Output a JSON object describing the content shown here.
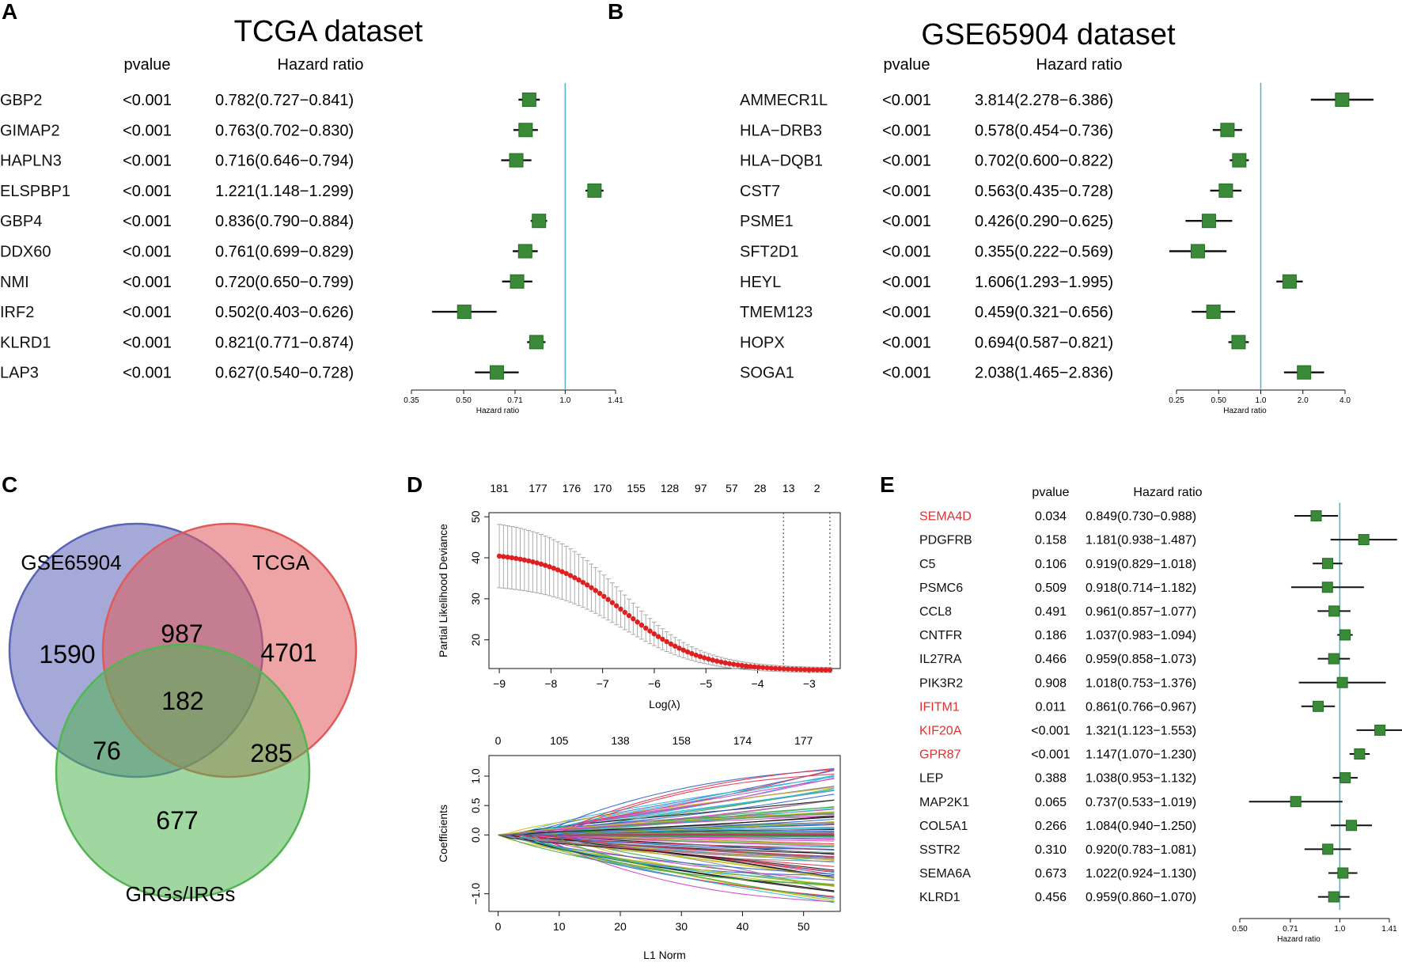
{
  "figure": {
    "panels": {
      "A": "A",
      "B": "B",
      "C": "C",
      "D": "D",
      "E": "E"
    },
    "colors": {
      "box": "#3a8a3a",
      "box_edge": "#1e6e1e",
      "refline": "#5ab4c8",
      "highlight": "#e03030",
      "lasso_dot": "#e02020"
    }
  },
  "chart_data": [
    {
      "type": "forest",
      "panel": "A",
      "title": "TCGA dataset",
      "col_pvalue": "pvalue",
      "col_hr": "Hazard ratio",
      "xlabel": "Hazard ratio",
      "ticks": [
        0.35,
        0.5,
        0.71,
        1.0,
        1.41
      ],
      "tick_labels": [
        "0.35",
        "0.50",
        "0.71",
        "1.0",
        "1.41"
      ],
      "ref": 1.0,
      "rows": [
        {
          "gene": "GBP2",
          "p": "<0.001",
          "hr_text": "0.782(0.727−0.841)",
          "hr": 0.782,
          "lo": 0.727,
          "hi": 0.841
        },
        {
          "gene": "GIMAP2",
          "p": "<0.001",
          "hr_text": "0.763(0.702−0.830)",
          "hr": 0.763,
          "lo": 0.702,
          "hi": 0.83
        },
        {
          "gene": "HAPLN3",
          "p": "<0.001",
          "hr_text": "0.716(0.646−0.794)",
          "hr": 0.716,
          "lo": 0.646,
          "hi": 0.794
        },
        {
          "gene": "ELSPBP1",
          "p": "<0.001",
          "hr_text": "1.221(1.148−1.299)",
          "hr": 1.221,
          "lo": 1.148,
          "hi": 1.299
        },
        {
          "gene": "GBP4",
          "p": "<0.001",
          "hr_text": "0.836(0.790−0.884)",
          "hr": 0.836,
          "lo": 0.79,
          "hi": 0.884
        },
        {
          "gene": "DDX60",
          "p": "<0.001",
          "hr_text": "0.761(0.699−0.829)",
          "hr": 0.761,
          "lo": 0.699,
          "hi": 0.829
        },
        {
          "gene": "NMI",
          "p": "<0.001",
          "hr_text": "0.720(0.650−0.799)",
          "hr": 0.72,
          "lo": 0.65,
          "hi": 0.799
        },
        {
          "gene": "IRF2",
          "p": "<0.001",
          "hr_text": "0.502(0.403−0.626)",
          "hr": 0.502,
          "lo": 0.403,
          "hi": 0.626
        },
        {
          "gene": "KLRD1",
          "p": "<0.001",
          "hr_text": "0.821(0.771−0.874)",
          "hr": 0.821,
          "lo": 0.771,
          "hi": 0.874
        },
        {
          "gene": "LAP3",
          "p": "<0.001",
          "hr_text": "0.627(0.540−0.728)",
          "hr": 0.627,
          "lo": 0.54,
          "hi": 0.728
        }
      ]
    },
    {
      "type": "forest",
      "panel": "B",
      "title": "GSE65904 dataset",
      "col_pvalue": "pvalue",
      "col_hr": "Hazard ratio",
      "xlabel": "Hazard ratio",
      "ticks": [
        0.25,
        0.5,
        1.0,
        2.0,
        4.0
      ],
      "tick_labels": [
        "0.25",
        "0.50",
        "1.0",
        "2.0",
        "4.0"
      ],
      "ref": 1.0,
      "rows": [
        {
          "gene": "AMMECR1L",
          "p": "<0.001",
          "hr_text": "3.814(2.278−6.386)",
          "hr": 3.814,
          "lo": 2.278,
          "hi": 6.386
        },
        {
          "gene": "HLA−DRB3",
          "p": "<0.001",
          "hr_text": "0.578(0.454−0.736)",
          "hr": 0.578,
          "lo": 0.454,
          "hi": 0.736
        },
        {
          "gene": "HLA−DQB1",
          "p": "<0.001",
          "hr_text": "0.702(0.600−0.822)",
          "hr": 0.702,
          "lo": 0.6,
          "hi": 0.822
        },
        {
          "gene": "CST7",
          "p": "<0.001",
          "hr_text": "0.563(0.435−0.728)",
          "hr": 0.563,
          "lo": 0.435,
          "hi": 0.728
        },
        {
          "gene": "PSME1",
          "p": "<0.001",
          "hr_text": "0.426(0.290−0.625)",
          "hr": 0.426,
          "lo": 0.29,
          "hi": 0.625
        },
        {
          "gene": "SFT2D1",
          "p": "<0.001",
          "hr_text": "0.355(0.222−0.569)",
          "hr": 0.355,
          "lo": 0.222,
          "hi": 0.569
        },
        {
          "gene": "HEYL",
          "p": "<0.001",
          "hr_text": "1.606(1.293−1.995)",
          "hr": 1.606,
          "lo": 1.293,
          "hi": 1.995
        },
        {
          "gene": "TMEM123",
          "p": "<0.001",
          "hr_text": "0.459(0.321−0.656)",
          "hr": 0.459,
          "lo": 0.321,
          "hi": 0.656
        },
        {
          "gene": "HOPX",
          "p": "<0.001",
          "hr_text": "0.694(0.587−0.821)",
          "hr": 0.694,
          "lo": 0.587,
          "hi": 0.821
        },
        {
          "gene": "SOGA1",
          "p": "<0.001",
          "hr_text": "2.038(1.465−2.836)",
          "hr": 2.038,
          "lo": 1.465,
          "hi": 2.836
        }
      ]
    },
    {
      "type": "venn",
      "panel": "C",
      "sets": [
        {
          "name": "GSE65904",
          "color": "#5b63b8"
        },
        {
          "name": "TCGA",
          "color": "#e05a5a"
        },
        {
          "name": "GRGs/IRGs",
          "color": "#52b552"
        }
      ],
      "regions": {
        "gse_only": 1590,
        "tcga_only": 4701,
        "grg_only": 677,
        "gse_tcga": 987,
        "gse_grg": 76,
        "tcga_grg": 285,
        "all": 182
      }
    },
    {
      "type": "line",
      "panel": "D",
      "subplot": "cv",
      "xlabel": "Log(λ)",
      "ylabel": "Partial Likelihood Deviance",
      "xlim": [
        -9.2,
        -2.4
      ],
      "ylim": [
        13,
        51
      ],
      "xticks": [
        -9,
        -8,
        -7,
        -6,
        -5,
        -4,
        -3
      ],
      "xtick_labels": [
        "−9",
        "−8",
        "−7",
        "−6",
        "−5",
        "−4",
        "−3"
      ],
      "yticks": [
        20,
        30,
        40,
        50
      ],
      "ytick_labels": [
        "20",
        "30",
        "40",
        "50"
      ],
      "top_counts": [
        "181",
        "177",
        "176",
        "170",
        "155",
        "128",
        "97",
        "57",
        "28",
        "13",
        "2"
      ],
      "top_positions": [
        -9.0,
        -8.25,
        -7.6,
        -7.0,
        -6.35,
        -5.7,
        -5.1,
        -4.5,
        -3.95,
        -3.4,
        -2.85
      ],
      "lambda_min": -3.5,
      "lambda_1se": -2.6,
      "curve": {
        "x_start": -9.0,
        "x_end": -2.6,
        "n": 80,
        "y_start": 41.5,
        "y_end": 12.5,
        "sd_start": 8.0,
        "sd_end": 0.6
      }
    },
    {
      "type": "line",
      "panel": "D",
      "subplot": "coef",
      "xlabel": "L1 Norm",
      "ylabel": "Coefficients",
      "xlim": [
        -1.5,
        56
      ],
      "ylim": [
        -1.3,
        1.35
      ],
      "xticks": [
        0,
        10,
        20,
        30,
        40,
        50
      ],
      "xtick_labels": [
        "0",
        "10",
        "20",
        "30",
        "40",
        "50"
      ],
      "yticks": [
        -1.0,
        0.0,
        0.5,
        1.0
      ],
      "ytick_labels": [
        "−1.0",
        "0.0",
        "0.5",
        "1.0"
      ],
      "top_counts": [
        "0",
        "105",
        "138",
        "158",
        "174",
        "177"
      ],
      "top_positions": [
        0,
        10,
        20,
        30,
        40,
        50
      ],
      "n_paths": 140,
      "x_end": 55
    },
    {
      "type": "forest",
      "panel": "E",
      "title": "",
      "col_pvalue": "pvalue",
      "col_hr": "Hazard ratio",
      "xlabel": "Hazard ratio",
      "ticks": [
        0.5,
        0.71,
        1.0,
        1.41
      ],
      "tick_labels": [
        "0.50",
        "0.71",
        "1.0",
        "1.41"
      ],
      "ref": 1.0,
      "rows": [
        {
          "gene": "SEMA4D",
          "p": "0.034",
          "hr_text": "0.849(0.730−0.988)",
          "hr": 0.849,
          "lo": 0.73,
          "hi": 0.988,
          "highlight": true
        },
        {
          "gene": "PDGFRB",
          "p": "0.158",
          "hr_text": "1.181(0.938−1.487)",
          "hr": 1.181,
          "lo": 0.938,
          "hi": 1.487
        },
        {
          "gene": "C5",
          "p": "0.106",
          "hr_text": "0.919(0.829−1.018)",
          "hr": 0.919,
          "lo": 0.829,
          "hi": 1.018
        },
        {
          "gene": "PSMC6",
          "p": "0.509",
          "hr_text": "0.918(0.714−1.182)",
          "hr": 0.918,
          "lo": 0.714,
          "hi": 1.182
        },
        {
          "gene": "CCL8",
          "p": "0.491",
          "hr_text": "0.961(0.857−1.077)",
          "hr": 0.961,
          "lo": 0.857,
          "hi": 1.077
        },
        {
          "gene": "CNTFR",
          "p": "0.186",
          "hr_text": "1.037(0.983−1.094)",
          "hr": 1.037,
          "lo": 0.983,
          "hi": 1.094
        },
        {
          "gene": "IL27RA",
          "p": "0.466",
          "hr_text": "0.959(0.858−1.073)",
          "hr": 0.959,
          "lo": 0.858,
          "hi": 1.073
        },
        {
          "gene": "PIK3R2",
          "p": "0.908",
          "hr_text": "1.018(0.753−1.376)",
          "hr": 1.018,
          "lo": 0.753,
          "hi": 1.376
        },
        {
          "gene": "IFITM1",
          "p": "0.011",
          "hr_text": "0.861(0.766−0.967)",
          "hr": 0.861,
          "lo": 0.766,
          "hi": 0.967,
          "highlight": true
        },
        {
          "gene": "KIF20A",
          "p": "<0.001",
          "hr_text": "1.321(1.123−1.553)",
          "hr": 1.321,
          "lo": 1.123,
          "hi": 1.553,
          "highlight": true
        },
        {
          "gene": "GPR87",
          "p": "<0.001",
          "hr_text": "1.147(1.070−1.230)",
          "hr": 1.147,
          "lo": 1.07,
          "hi": 1.23,
          "highlight": true
        },
        {
          "gene": "LEP",
          "p": "0.388",
          "hr_text": "1.038(0.953−1.132)",
          "hr": 1.038,
          "lo": 0.953,
          "hi": 1.132
        },
        {
          "gene": "MAP2K1",
          "p": "0.065",
          "hr_text": "0.737(0.533−1.019)",
          "hr": 0.737,
          "lo": 0.533,
          "hi": 1.019
        },
        {
          "gene": "COL5A1",
          "p": "0.266",
          "hr_text": "1.084(0.940−1.250)",
          "hr": 1.084,
          "lo": 0.94,
          "hi": 1.25
        },
        {
          "gene": "SSTR2",
          "p": "0.310",
          "hr_text": "0.920(0.783−1.081)",
          "hr": 0.92,
          "lo": 0.783,
          "hi": 1.081
        },
        {
          "gene": "SEMA6A",
          "p": "0.673",
          "hr_text": "1.022(0.924−1.130)",
          "hr": 1.022,
          "lo": 0.924,
          "hi": 1.13
        },
        {
          "gene": "KLRD1",
          "p": "0.456",
          "hr_text": "0.959(0.860−1.070)",
          "hr": 0.959,
          "lo": 0.86,
          "hi": 1.07
        }
      ]
    }
  ]
}
